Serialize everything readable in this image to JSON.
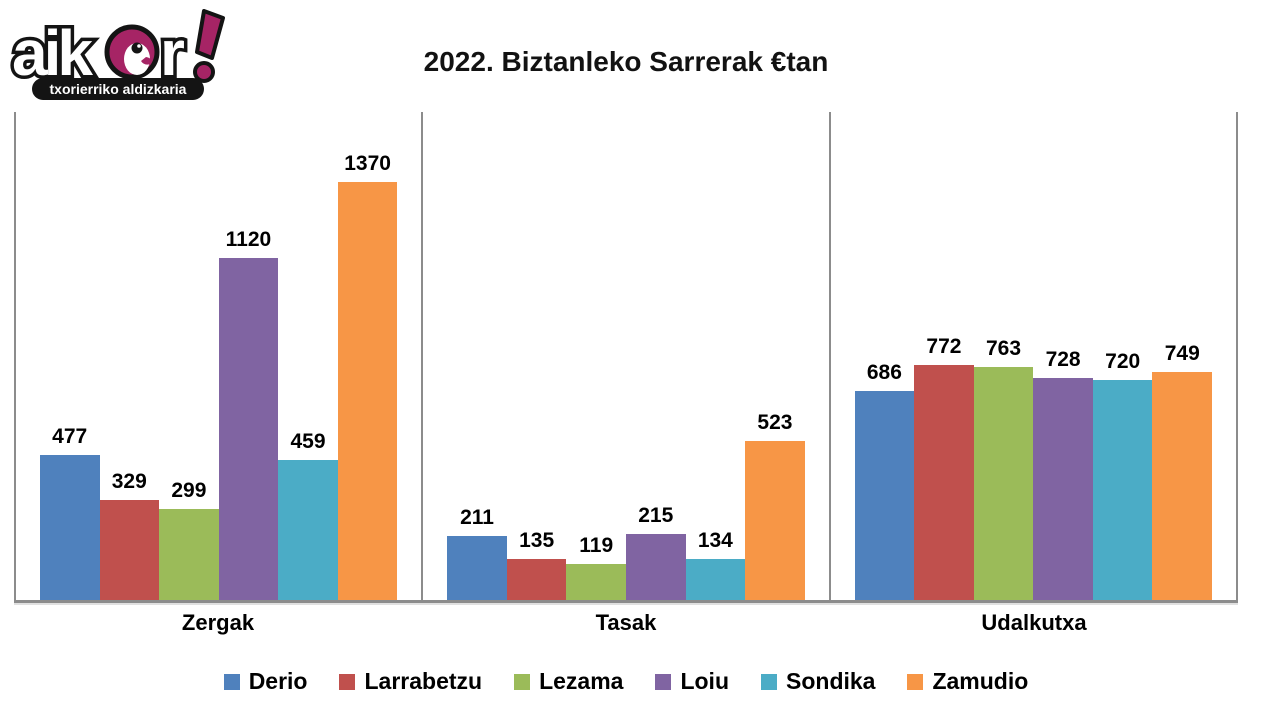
{
  "logo": {
    "word_start": "aik",
    "word_end": "r",
    "tagline": "txorierriko aldizkaria",
    "accent_color": "#A62465"
  },
  "title": "2022. Biztanleko Sarrerak €tan",
  "chart_data": {
    "type": "bar",
    "title": "2022. Biztanleko Sarrerak €tan",
    "categories": [
      "Zergak",
      "Tasak",
      "Udalkutxa"
    ],
    "series": [
      {
        "name": "Derio",
        "color": "#4F81BD",
        "values": [
          477,
          211,
          686
        ]
      },
      {
        "name": "Larrabetzu",
        "color": "#C0504D",
        "values": [
          329,
          135,
          772
        ]
      },
      {
        "name": "Lezama",
        "color": "#9BBB59",
        "values": [
          299,
          119,
          763
        ]
      },
      {
        "name": "Loiu",
        "color": "#8064A2",
        "values": [
          1120,
          215,
          728
        ]
      },
      {
        "name": "Sondika",
        "color": "#4BACC6",
        "values": [
          459,
          134,
          720
        ]
      },
      {
        "name": "Zamudio",
        "color": "#F79646",
        "values": [
          1370,
          523,
          749
        ]
      }
    ],
    "ylim": [
      0,
      1600
    ],
    "data_labels": true,
    "grid": false,
    "legend_position": "bottom",
    "axis_line_color": "#8c8c8c"
  }
}
